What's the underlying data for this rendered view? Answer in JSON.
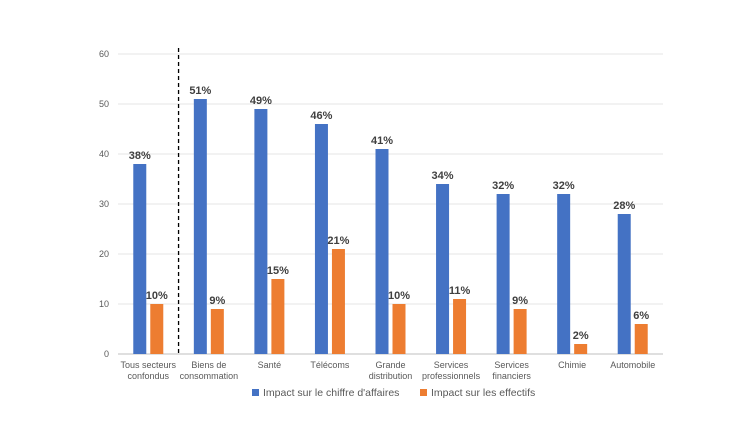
{
  "chart_data": {
    "type": "bar",
    "title": "",
    "xlabel": "",
    "ylabel": "",
    "ylim": [
      0,
      60
    ],
    "yticks": [
      0,
      10,
      20,
      30,
      40,
      50,
      60
    ],
    "grid": true,
    "legend_position": "bottom",
    "categories": [
      [
        "Tous secteurs",
        "confondus"
      ],
      [
        "Biens de",
        "consommation"
      ],
      [
        "Santé"
      ],
      [
        "Télécoms"
      ],
      [
        "Grande",
        "distribution"
      ],
      [
        "Services",
        "professionnels"
      ],
      [
        "Services",
        "financiers"
      ],
      [
        "Chimie"
      ],
      [
        "Automobile"
      ]
    ],
    "series": [
      {
        "name": "Impact sur le chiffre d'affaires",
        "color": "#4472C4",
        "values": [
          38,
          51,
          49,
          46,
          41,
          34,
          32,
          32,
          28
        ],
        "labels": [
          "38%",
          "51%",
          "49%",
          "46%",
          "41%",
          "34%",
          "32%",
          "32%",
          "28%"
        ]
      },
      {
        "name": "Impact sur les effectifs",
        "color": "#ED7D31",
        "values": [
          10,
          9,
          15,
          21,
          10,
          11,
          9,
          2,
          6
        ],
        "labels": [
          "10%",
          "9%",
          "15%",
          "21%",
          "10%",
          "11%",
          "9%",
          "2%",
          "6%"
        ]
      }
    ],
    "separator_after_category": 0
  }
}
